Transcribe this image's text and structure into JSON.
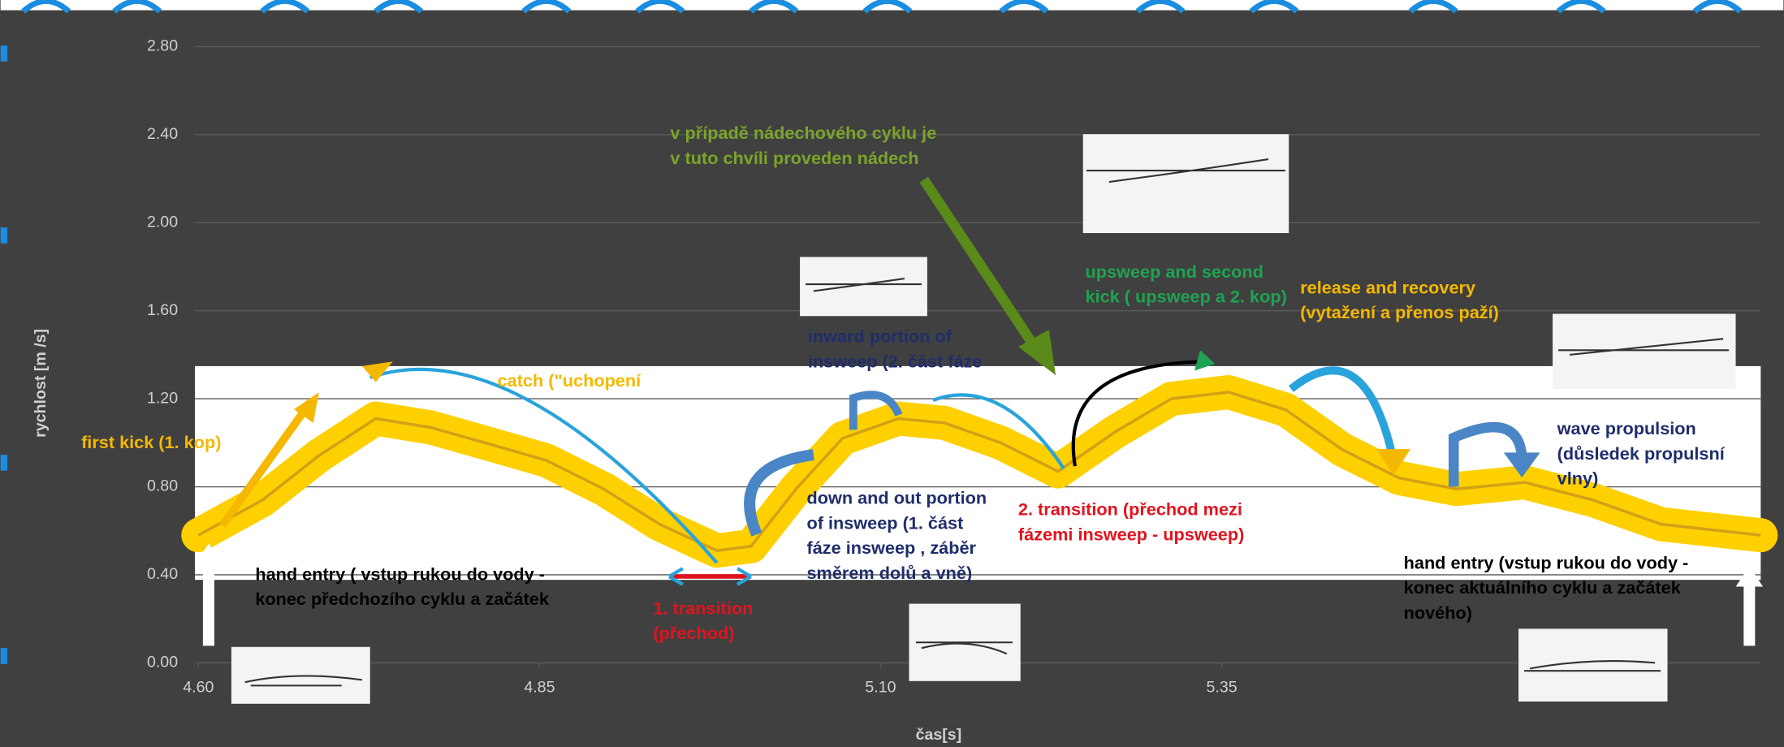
{
  "chart_data": {
    "type": "line",
    "x_label": "čas[s]",
    "y_label": "rychlost [m /s]",
    "xlim": [
      4.6,
      5.745
    ],
    "ylim": [
      0,
      2.8
    ],
    "xticks": [
      {
        "value": 4.6,
        "label": "4.60"
      },
      {
        "value": 4.85,
        "label": "4.85"
      },
      {
        "value": 5.1,
        "label": "5.10"
      },
      {
        "value": 5.35,
        "label": "5.35"
      }
    ],
    "yticks": [
      {
        "value": 0,
        "label": "0.00"
      },
      {
        "value": 0.4,
        "label": "0.40"
      },
      {
        "value": 0.8,
        "label": "0.80"
      },
      {
        "value": 1.2,
        "label": "1.20"
      },
      {
        "value": 1.6,
        "label": "1.60"
      },
      {
        "value": 2.0,
        "label": "2.00"
      },
      {
        "value": 2.4,
        "label": "2.40"
      },
      {
        "value": 2.8,
        "label": "2.80"
      }
    ],
    "grid": true,
    "series": [
      {
        "color": "#ffd000",
        "x": [
          4.6,
          4.647,
          4.688,
          4.73,
          4.77,
          4.81,
          4.855,
          4.897,
          4.938,
          4.98,
          5.005,
          5.038,
          5.072,
          5.113,
          5.147,
          5.188,
          5.23,
          5.272,
          5.313,
          5.355,
          5.397,
          5.438,
          5.48,
          5.522,
          5.572,
          5.622,
          5.672,
          5.745
        ],
        "values": [
          0.58,
          0.74,
          0.94,
          1.11,
          1.07,
          1.0,
          0.92,
          0.79,
          0.63,
          0.51,
          0.53,
          0.79,
          1.02,
          1.11,
          1.09,
          1.0,
          0.87,
          1.05,
          1.2,
          1.23,
          1.15,
          0.97,
          0.84,
          0.79,
          0.82,
          0.74,
          0.63,
          0.58
        ]
      }
    ],
    "annotations": [
      {
        "lines": [
          "first kick  (1. kop)"
        ],
        "color": "#f5b800"
      },
      {
        "lines": [
          "catch (\"uchopení"
        ],
        "color": "#f5b800"
      },
      {
        "lines": [
          "v případě nádechového cyklu je",
          "v tuto chvíli proveden nádech"
        ],
        "color": "#7aa52a"
      },
      {
        "lines": [
          "inward portion of",
          "insweep (2. část fáze"
        ],
        "color": "#1f2d6b"
      },
      {
        "lines": [
          "upsweep and second",
          "kick ( upsweep a 2. kop)"
        ],
        "color": "#1ea352"
      },
      {
        "lines": [
          "release and recovery",
          "(vytažení a přenos paží)"
        ],
        "color": "#f5b800"
      },
      {
        "lines": [
          "wave propulsion",
          "(důsledek propulsní",
          "vlny)"
        ],
        "color": "#1f2d6b"
      },
      {
        "lines": [
          "down and out  portion",
          "of insweep (1. část",
          "fáze insweep , záběr",
          "směrem dolů a vně)"
        ],
        "color": "#1f2d6b"
      },
      {
        "lines": [
          "2. transition (přechod mezi",
          "fázemi insweep - upsweep)"
        ],
        "color": "#e0141e"
      },
      {
        "lines": [
          "hand entry ( vstup rukou do vody -",
          "konec předchozího cyklu a začátek"
        ],
        "color": "#000000"
      },
      {
        "lines": [
          "1.  transition",
          "(přechod)"
        ],
        "color": "#e0141e"
      },
      {
        "lines": [
          "hand entry (vstup rukou do vody -",
          "konec aktuálního cyklu a začátek",
          "nového)"
        ],
        "color": "#000000"
      }
    ]
  }
}
